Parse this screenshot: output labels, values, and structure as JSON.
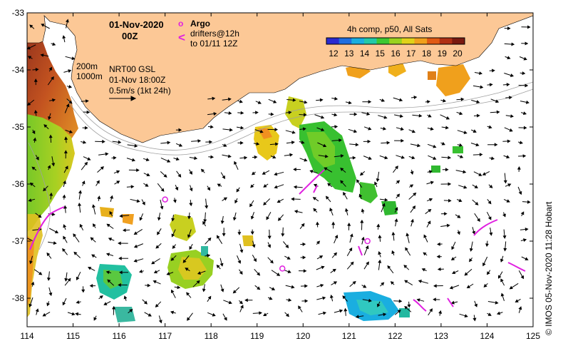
{
  "map": {
    "type": "sea-surface-temperature-map",
    "date": "01-Nov-2020",
    "hour": "00Z",
    "lon_range": [
      114,
      125
    ],
    "lat_range": [
      -38.5,
      -33
    ],
    "lon_ticks": [
      "114",
      "115",
      "116",
      "117",
      "118",
      "119",
      "120",
      "121",
      "122",
      "123",
      "124",
      "125"
    ],
    "lat_ticks": [
      "-33",
      "-34",
      "-35",
      "-36",
      "-37",
      "-38"
    ],
    "colorbar": {
      "title": "4h comp, p50, All Sats",
      "ticks": [
        "12",
        "13",
        "14",
        "15",
        "16",
        "17",
        "18",
        "19",
        "20"
      ],
      "range": [
        12,
        20
      ],
      "colors": [
        "#2a2ad0",
        "#1f6ee0",
        "#19aee0",
        "#22c9a8",
        "#3cc832",
        "#9ad21e",
        "#e0d21a",
        "#f0a01c",
        "#e05a14",
        "#b03014",
        "#7a1a10"
      ]
    },
    "legend": {
      "argo_symbol": "o",
      "argo_label": "Argo",
      "drifters_symbol": "<",
      "drifters_line1": "drifters@12h",
      "drifters_line2": "to 01/11 12Z"
    },
    "contours": {
      "line1": "200m",
      "line2": "1000m"
    },
    "currents": {
      "source": "NRT00 GSL",
      "time": "01-Nov 18:00Z",
      "scale": "0.5m/s (1kt 24h)"
    },
    "credit": "© IMOS 05-Nov-2020 11:28 Hobart",
    "argo_floats": [
      {
        "lon": 117.0,
        "lat": -36.27
      },
      {
        "lon": 119.55,
        "lat": -37.48
      },
      {
        "lon": 121.4,
        "lat": -37.0
      }
    ],
    "colors": {
      "land": "#fcc896",
      "ocean": "#ffffff",
      "drifter": "#e020e0",
      "contour": "#a0a0a0"
    }
  }
}
